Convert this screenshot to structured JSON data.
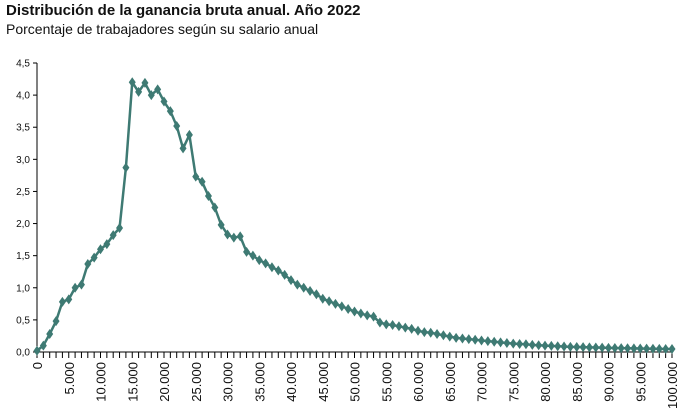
{
  "header": {
    "title": "Distribución de la ganancia bruta anual. Año 2022",
    "subtitle": "Porcentaje de trabajadores según su salario anual"
  },
  "style": {
    "series_color": "#3e7a73",
    "axis_color": "#000000"
  },
  "chart_data": {
    "type": "line",
    "title": "Distribución de la ganancia bruta anual. Año 2022",
    "subtitle": "Porcentaje de trabajadores según su salario anual",
    "xlabel": "",
    "ylabel": "",
    "xlim": [
      0,
      100000
    ],
    "ylim": [
      0,
      4.5
    ],
    "grid": false,
    "legend": "none",
    "marker": "diamond",
    "ytick_labels": [
      "0,0",
      "0,5",
      "1,0",
      "1,5",
      "2,0",
      "2,5",
      "3,0",
      "3,5",
      "4,0",
      "4,5"
    ],
    "xtick_labels": [
      "0",
      "5.000",
      "10.000",
      "15.000",
      "20.000",
      "25.000",
      "30.000",
      "35.000",
      "40.000",
      "45.000",
      "50.000",
      "55.000",
      "60.000",
      "65.000",
      "70.000",
      "75.000",
      "80.000",
      "85.000",
      "90.000",
      "95.000",
      "100.000"
    ],
    "series": [
      {
        "x": [
          0,
          1000,
          2000,
          3000,
          4000,
          5000,
          6000,
          7000,
          8000,
          9000,
          10000,
          11000,
          12000,
          13000,
          14000,
          15000,
          16000,
          17000,
          18000,
          19000,
          20000,
          21000,
          22000,
          23000,
          24000,
          25000,
          26000,
          27000,
          28000,
          29000,
          30000,
          31000,
          32000,
          33000,
          34000,
          35000,
          36000,
          37000,
          38000,
          39000,
          40000,
          41000,
          42000,
          43000,
          44000,
          45000,
          46000,
          47000,
          48000,
          49000,
          50000,
          51000,
          52000,
          53000,
          54000,
          55000,
          56000,
          57000,
          58000,
          59000,
          60000,
          61000,
          62000,
          63000,
          64000,
          65000,
          66000,
          67000,
          68000,
          69000,
          70000,
          71000,
          72000,
          73000,
          74000,
          75000,
          76000,
          77000,
          78000,
          79000,
          80000,
          81000,
          82000,
          83000,
          84000,
          85000,
          86000,
          87000,
          88000,
          89000,
          90000,
          91000,
          92000,
          93000,
          94000,
          95000,
          96000,
          97000,
          98000,
          99000,
          100000
        ],
        "values": [
          0.02,
          0.1,
          0.28,
          0.48,
          0.78,
          0.82,
          1.0,
          1.05,
          1.37,
          1.47,
          1.6,
          1.68,
          1.82,
          1.93,
          2.87,
          4.2,
          4.05,
          4.19,
          4.0,
          4.09,
          3.9,
          3.75,
          3.52,
          3.17,
          3.38,
          2.73,
          2.65,
          2.43,
          2.25,
          1.98,
          1.83,
          1.78,
          1.8,
          1.56,
          1.5,
          1.43,
          1.38,
          1.32,
          1.27,
          1.2,
          1.12,
          1.05,
          1.0,
          0.95,
          0.9,
          0.83,
          0.79,
          0.75,
          0.71,
          0.67,
          0.63,
          0.6,
          0.57,
          0.55,
          0.46,
          0.43,
          0.42,
          0.4,
          0.38,
          0.36,
          0.33,
          0.31,
          0.3,
          0.28,
          0.26,
          0.24,
          0.22,
          0.21,
          0.2,
          0.19,
          0.18,
          0.17,
          0.16,
          0.15,
          0.14,
          0.13,
          0.125,
          0.12,
          0.11,
          0.105,
          0.1,
          0.095,
          0.09,
          0.085,
          0.08,
          0.078,
          0.075,
          0.072,
          0.07,
          0.068,
          0.065,
          0.063,
          0.06,
          0.058,
          0.056,
          0.054,
          0.052,
          0.05,
          0.048,
          0.047,
          0.046
        ]
      }
    ]
  }
}
